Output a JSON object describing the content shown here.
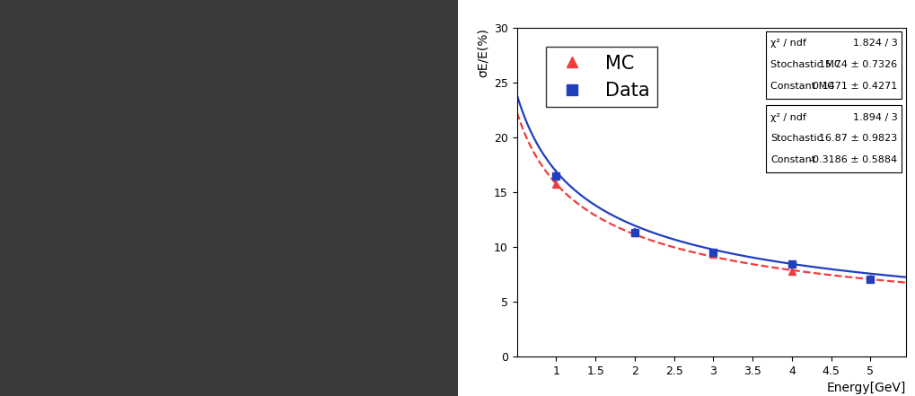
{
  "chart_data": {
    "type": "scatter",
    "x_label": "Energy[GeV]",
    "y_label": "σE/E(%)",
    "xlim": [
      0.5,
      5.45
    ],
    "xticks": [
      1,
      1.5,
      2,
      2.5,
      3,
      3.5,
      4,
      4.5,
      5
    ],
    "ylim": [
      0,
      30
    ],
    "yticks": [
      0,
      5,
      10,
      15,
      20,
      25,
      30
    ],
    "legend": "upper left",
    "series": [
      {
        "name": "MC",
        "color": "#f03c3c",
        "marker": "triangle",
        "line_style": "dashed",
        "x": [
          1,
          2,
          3,
          4,
          5
        ],
        "values": [
          15.7,
          11.3,
          9.3,
          7.8,
          7.1
        ],
        "errors": [
          0.2,
          0.2,
          0.2,
          0.2,
          0.2
        ],
        "fit": {
          "stochastic": 15.74,
          "constant": 0.1471
        },
        "stats": [
          [
            "χ² / ndf",
            "1.824 / 3"
          ],
          [
            "Stochastic MC",
            "15.74 ± 0.7326"
          ],
          [
            "Constant MC",
            "0.1471 ± 0.4271"
          ]
        ]
      },
      {
        "name": "Data",
        "color": "#1f3fbf",
        "marker": "square",
        "line_style": "solid",
        "x": [
          1,
          2,
          3,
          4,
          5
        ],
        "values": [
          16.5,
          11.3,
          9.5,
          8.4,
          7.0
        ],
        "errors": [
          0.5,
          0.4,
          0.35,
          0.3,
          0.3
        ],
        "fit": {
          "stochastic": 16.87,
          "constant": -0.3186
        },
        "stats": [
          [
            "χ² / ndf",
            "1.894 / 3"
          ],
          [
            "Stochastic",
            "16.87 ± 0.9823"
          ],
          [
            "Constant",
            "-0.3186 ± 0.5884"
          ]
        ]
      }
    ]
  }
}
